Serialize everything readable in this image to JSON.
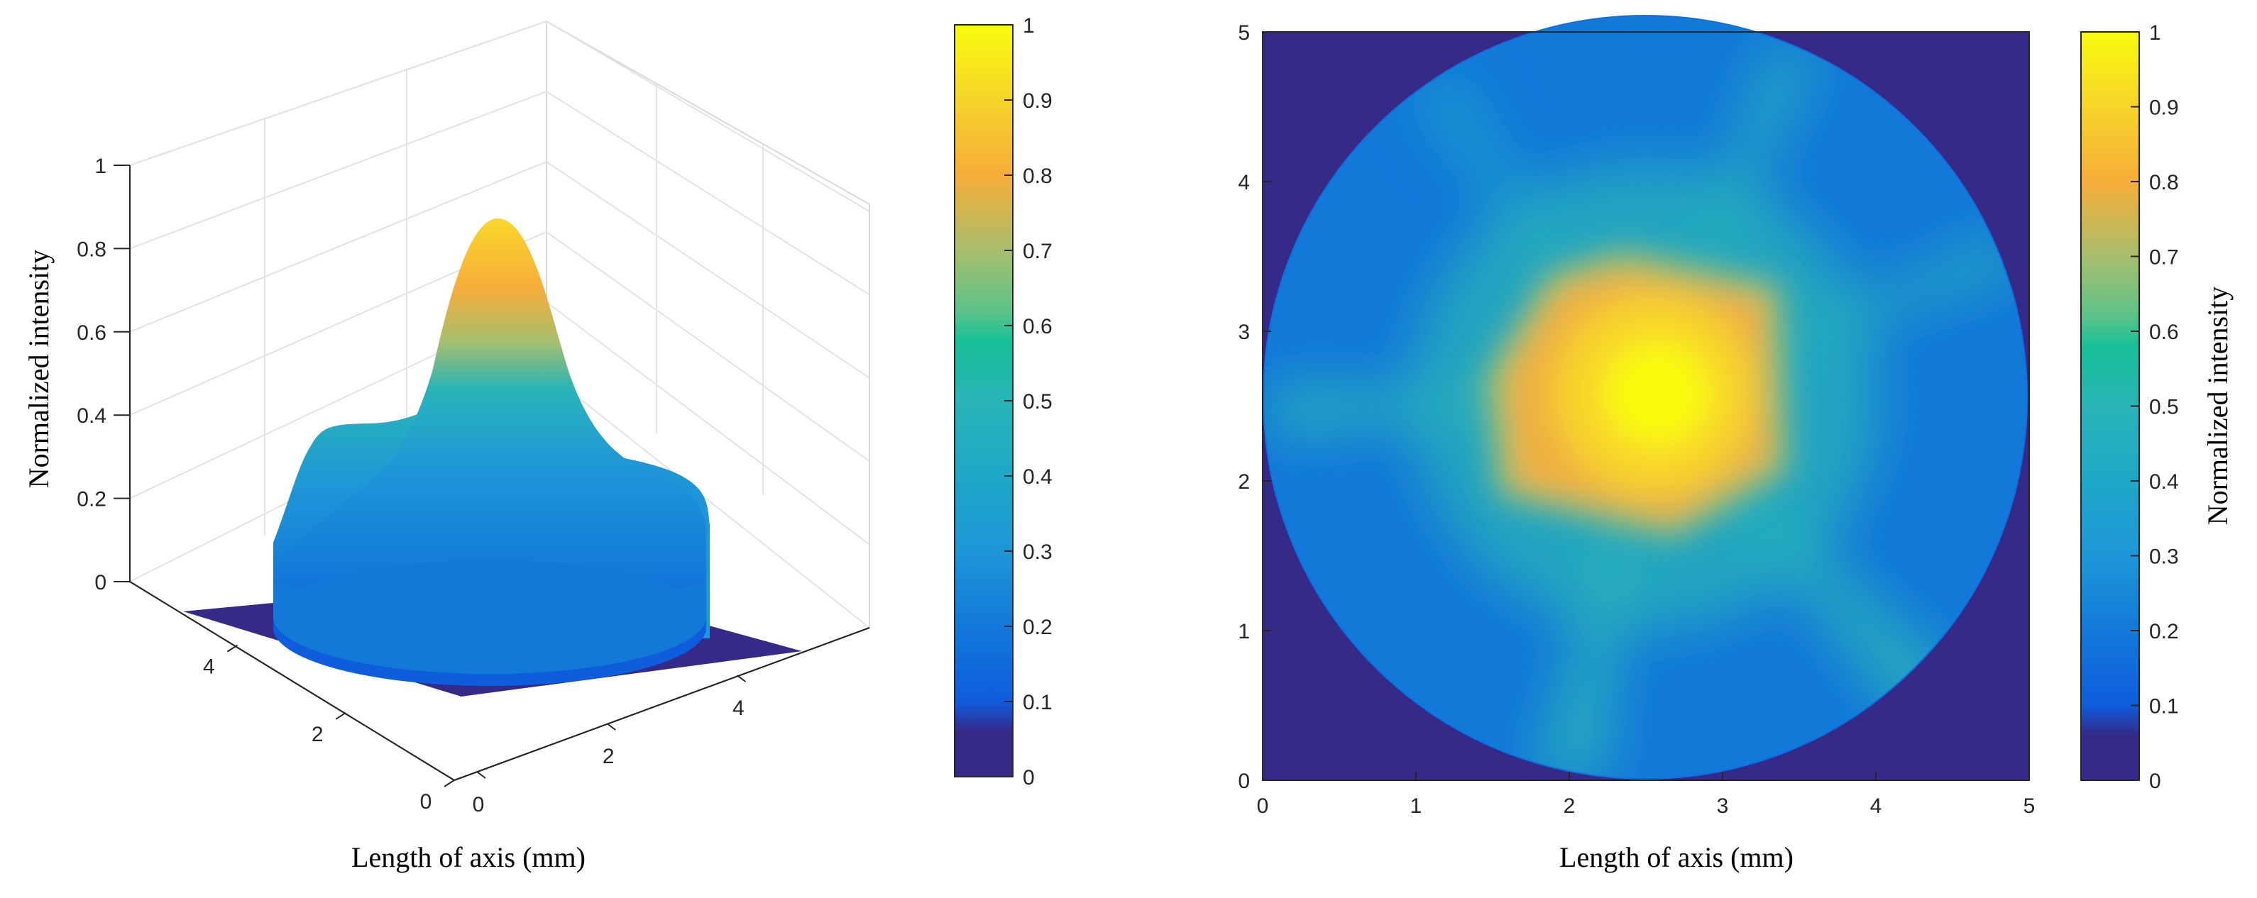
{
  "chart_data": [
    {
      "type": "surface3d",
      "xlabel": "Length of axis  (mm)",
      "zlabel": "Normalized intensity",
      "z_ticks": [
        "0",
        "0.2",
        "0.4",
        "0.6",
        "0.8",
        "1"
      ],
      "x_ticks": [
        "0",
        "2",
        "4"
      ],
      "y_ticks": [
        "0",
        "2",
        "4"
      ],
      "xlim": [
        0,
        5
      ],
      "ylim": [
        0,
        5
      ],
      "zlim": [
        0,
        1
      ],
      "peak": {
        "x": 2.5,
        "y": 2.5,
        "z": 0.86
      },
      "plateau_level": 0.3,
      "pedestal_level": 0.2,
      "aperture_radius_mm": 2.5,
      "grid": true,
      "colorbar": {
        "ticks": [
          "0",
          "0.1",
          "0.2",
          "0.3",
          "0.4",
          "0.5",
          "0.6",
          "0.7",
          "0.8",
          "0.9",
          "1"
        ],
        "range": [
          0,
          1
        ]
      }
    },
    {
      "type": "heatmap",
      "xlabel": "Length of axis  (mm)",
      "colorbar_label": "Normalized intensity",
      "x_ticks": [
        "0",
        "1",
        "2",
        "3",
        "4",
        "5"
      ],
      "y_ticks": [
        "0",
        "1",
        "2",
        "3",
        "4",
        "5"
      ],
      "xlim": [
        0,
        5
      ],
      "ylim": [
        0,
        5
      ],
      "center": {
        "x": 2.55,
        "y": 2.5,
        "value": 1.0
      },
      "pentagon_core_value": 0.75,
      "arm_value": 0.5,
      "edge_value": 0.22,
      "outside_value": 0.0,
      "aperture_radius_mm": 2.5,
      "colorbar": {
        "ticks": [
          "0",
          "0.1",
          "0.2",
          "0.3",
          "0.4",
          "0.5",
          "0.6",
          "0.7",
          "0.8",
          "0.9",
          "1"
        ],
        "range": [
          0,
          1
        ]
      }
    }
  ],
  "colors": {
    "parula_dark": "#352a87",
    "parula_blue": "#0f5cdd",
    "parula_cyan": "#1e96d8",
    "parula_teal": "#2ab4b8",
    "parula_green": "#5cc38a",
    "parula_orange": "#f7ad3a",
    "parula_yellow": "#f9fb0e"
  }
}
